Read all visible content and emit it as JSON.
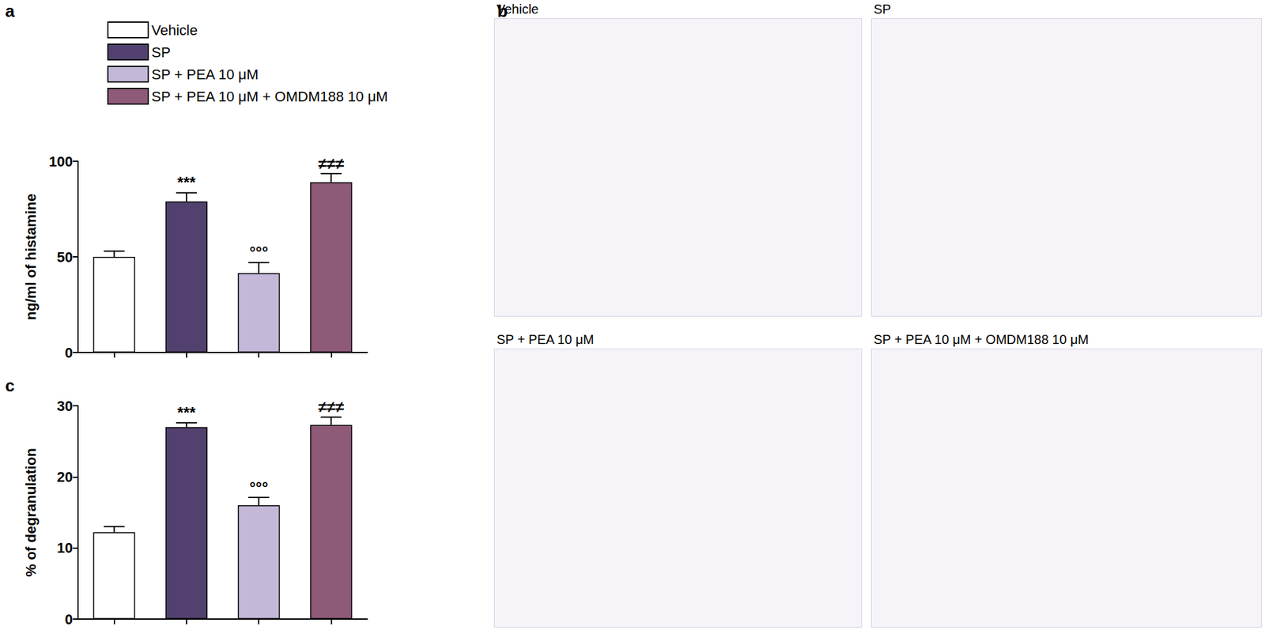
{
  "chart_data": [
    {
      "panel": "a",
      "type": "bar",
      "categories": [
        null,
        null,
        null,
        null
      ],
      "y_label": "ng/ml of histamine",
      "ylim": [
        0,
        100
      ],
      "yticks": [
        0,
        50,
        100
      ],
      "legend": "top-left",
      "series": [
        {
          "name": "Vehicle",
          "color": "#ffffff",
          "values": [
            50,
            null,
            null,
            null
          ],
          "errors": [
            3,
            null,
            null,
            null
          ]
        },
        {
          "name": "SP",
          "color": "#52416e",
          "values": [
            null,
            79,
            null,
            null
          ],
          "errors": [
            null,
            4.5,
            null,
            null
          ],
          "annotation": "***"
        },
        {
          "name": "SP + PEA 10 μM",
          "color": "#c4b8d8",
          "values": [
            null,
            null,
            41.5,
            null
          ],
          "errors": [
            null,
            null,
            5.5,
            null
          ],
          "annotation": "°°°"
        },
        {
          "name": "SP + PEA 10 μM + OMDM188 10 μM",
          "color": "#8e5a78",
          "values": [
            null,
            null,
            null,
            89
          ],
          "errors": [
            null,
            null,
            null,
            4.5
          ],
          "annotation": "≠≠≠"
        }
      ]
    },
    {
      "panel": "c",
      "type": "bar",
      "categories": [
        null,
        null,
        null,
        null
      ],
      "y_label": "% of degranulation",
      "ylim": [
        0,
        30
      ],
      "yticks": [
        0,
        10,
        20,
        30
      ],
      "series": [
        {
          "name": "Vehicle",
          "color": "#ffffff",
          "values": [
            12.2,
            null,
            null,
            null
          ],
          "errors": [
            0.8,
            null,
            null,
            null
          ]
        },
        {
          "name": "SP",
          "color": "#52416e",
          "values": [
            null,
            27,
            null,
            null
          ],
          "errors": [
            null,
            0.6,
            null,
            null
          ],
          "annotation": "***"
        },
        {
          "name": "SP + PEA 10 μM",
          "color": "#c4b8d8",
          "values": [
            null,
            null,
            16,
            null
          ],
          "errors": [
            null,
            null,
            1.1,
            null
          ],
          "annotation": "°°°"
        },
        {
          "name": "SP + PEA 10 μM + OMDM188 10 μM",
          "color": "#8e5a78",
          "values": [
            null,
            null,
            null,
            27.3
          ],
          "errors": [
            null,
            null,
            null,
            1.1
          ],
          "annotation": "≠≠≠"
        }
      ]
    }
  ],
  "micrographs": {
    "panel": "b",
    "images": [
      "Vehicle",
      "SP",
      "SP + PEA 10 μM",
      "SP + PEA 10 μM + OMDM188 10 μM"
    ]
  }
}
